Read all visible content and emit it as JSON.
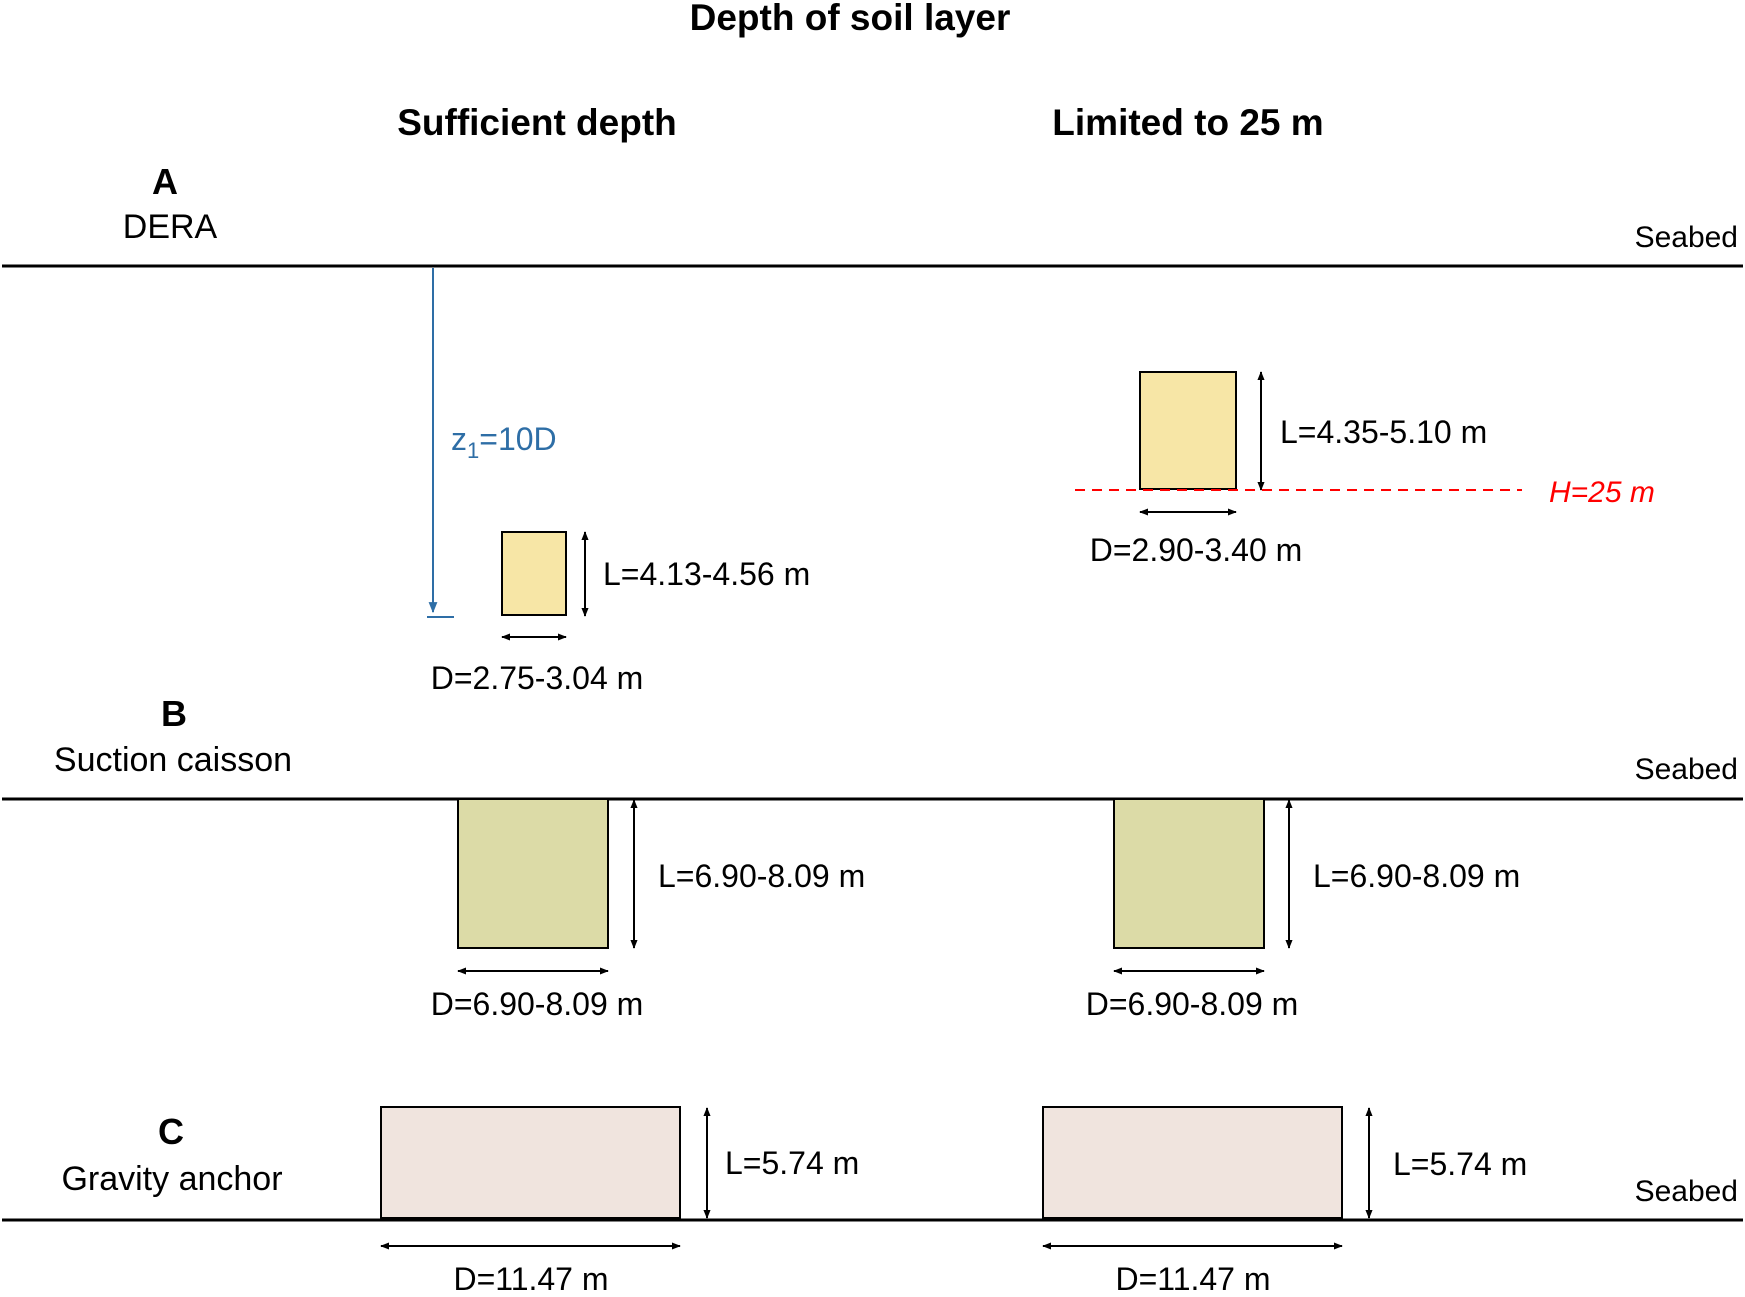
{
  "title": "Depth of soil layer",
  "columns": {
    "left": "Sufficient depth",
    "right": "Limited to 25 m"
  },
  "seabed_label": "Seabed",
  "colors": {
    "dera_fill": "#f7e6a6",
    "caisson_fill": "#dcdba7",
    "gravity_fill": "#f0e4de",
    "z1_line": "#2e6ea6",
    "limit_line": "#ff0000"
  },
  "panels": {
    "a": {
      "letter": "A",
      "name": "DERA",
      "z1_label": "z1=10D",
      "limit_label": "H=25 m",
      "left": {
        "length": "L=4.13-4.56 m",
        "diameter": "D=2.75-3.04 m"
      },
      "right": {
        "length": "L=4.35-5.10 m",
        "diameter": "D=2.90-3.40 m"
      }
    },
    "b": {
      "letter": "B",
      "name": "Suction caisson",
      "left": {
        "length": "L=6.90-8.09 m",
        "diameter": "D=6.90-8.09 m"
      },
      "right": {
        "length": "L=6.90-8.09 m",
        "diameter": "D=6.90-8.09 m"
      }
    },
    "c": {
      "letter": "C",
      "name": "Gravity anchor",
      "left": {
        "length": "L=5.74 m",
        "diameter": "D=11.47 m"
      },
      "right": {
        "length": "L=5.74 m",
        "diameter": "D=11.47 m"
      }
    }
  }
}
